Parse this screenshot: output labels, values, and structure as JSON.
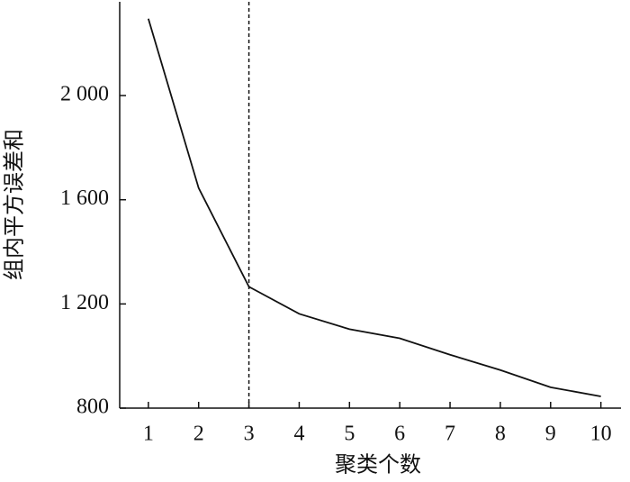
{
  "chart_data": {
    "type": "line",
    "x_label": "聚类个数",
    "y_label": "组内平方误差和",
    "x": [
      1,
      2,
      3,
      4,
      5,
      6,
      7,
      8,
      9,
      10
    ],
    "series": [
      {
        "color": "#111111",
        "values": [
          2295,
          1645,
          1266,
          1162,
          1103,
          1068,
          1005,
          946,
          880,
          845
        ]
      }
    ],
    "xlim": [
      0.43,
      10.4
    ],
    "ylim": [
      800,
      2360
    ],
    "xticks": [
      1,
      2,
      3,
      4,
      5,
      6,
      7,
      8,
      9,
      10
    ],
    "yticks": [
      800,
      {
        "value": 1200,
        "label": "1 200"
      },
      {
        "value": 1600,
        "label": "1 600"
      },
      {
        "value": 2000,
        "label": "2 000"
      }
    ],
    "vline": 3,
    "vline_style": "dashed"
  }
}
